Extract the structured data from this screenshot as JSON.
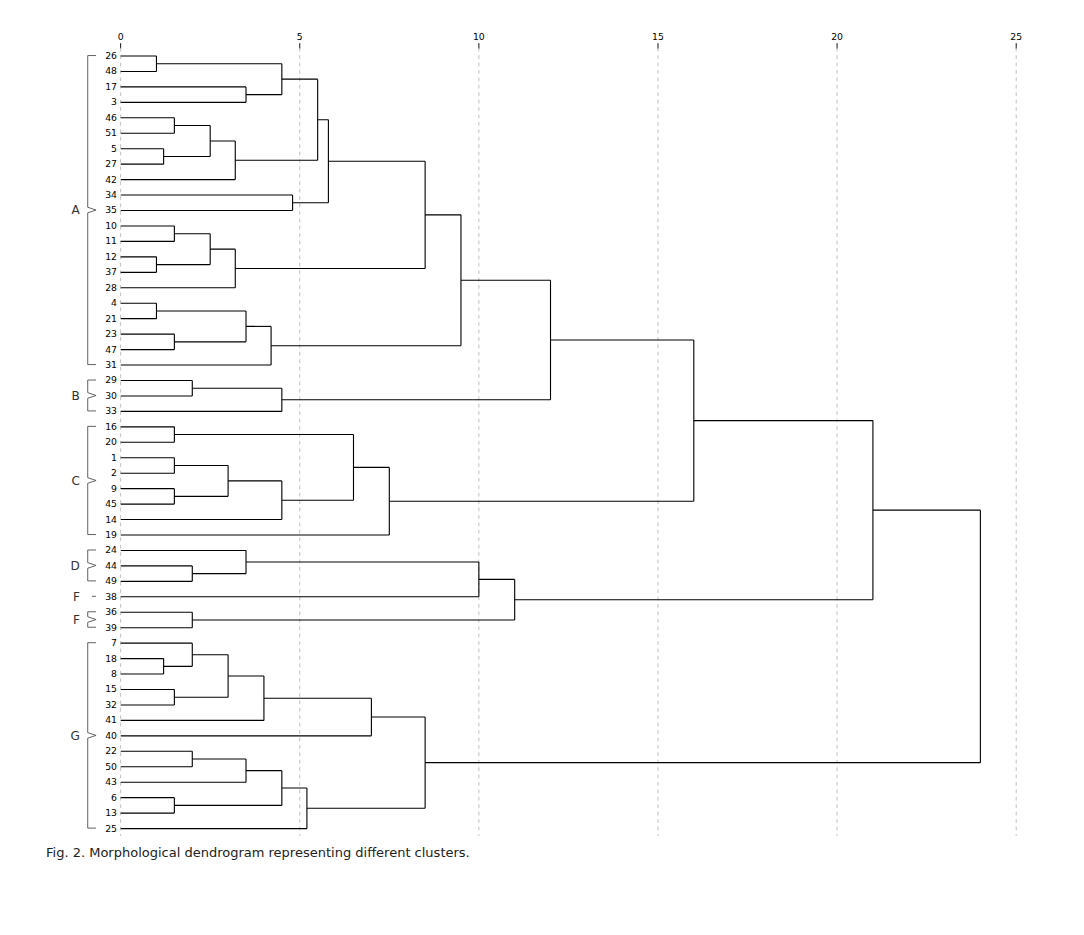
{
  "chart_data": {
    "type": "dendrogram",
    "caption": "Fig. 2. Morphological dendrogram representing different clusters.",
    "categories": [
      26,
      48,
      17,
      3,
      46,
      51,
      5,
      27,
      42,
      34,
      35,
      10,
      11,
      12,
      37,
      28,
      4,
      21,
      23,
      47,
      31,
      29,
      30,
      33,
      16,
      20,
      1,
      2,
      9,
      45,
      14,
      19,
      24,
      44,
      49,
      38,
      36,
      39,
      7,
      18,
      8,
      15,
      32,
      41,
      40,
      22,
      50,
      43,
      6,
      13,
      25
    ],
    "xlim": [
      0,
      25
    ],
    "xticks": [
      0,
      5,
      10,
      15,
      20,
      25
    ],
    "grid": true,
    "tree": {
      "height": 24.0,
      "children": [
        {
          "height": 21.0,
          "children": [
            {
              "height": 16.0,
              "children": [
                {
                  "height": 12.0,
                  "children": [
                    {
                      "height": 9.5,
                      "children": [
                        {
                          "height": 8.5,
                          "children": [
                            {
                              "height": 5.8,
                              "children": [
                                {
                                  "height": 5.5,
                                  "children": [
                                    {
                                      "height": 4.5,
                                      "children": [
                                        {
                                          "height": 1.0,
                                          "children": [
                                            26,
                                            48
                                          ]
                                        },
                                        {
                                          "height": 3.5,
                                          "children": [
                                            17,
                                            3
                                          ]
                                        }
                                      ]
                                    },
                                    {
                                      "height": 3.2,
                                      "children": [
                                        {
                                          "height": 2.5,
                                          "children": [
                                            {
                                              "height": 1.5,
                                              "children": [
                                                46,
                                                51
                                              ]
                                            },
                                            {
                                              "height": 1.2,
                                              "children": [
                                                5,
                                                27
                                              ]
                                            }
                                          ]
                                        },
                                        42
                                      ]
                                    }
                                  ]
                                },
                                {
                                  "height": 4.8,
                                  "children": [
                                    34,
                                    35
                                  ]
                                }
                              ]
                            },
                            {
                              "height": 3.2,
                              "children": [
                                {
                                  "height": 2.5,
                                  "children": [
                                    {
                                      "height": 1.5,
                                      "children": [
                                        10,
                                        11
                                      ]
                                    },
                                    {
                                      "height": 1.0,
                                      "children": [
                                        12,
                                        37
                                      ]
                                    }
                                  ]
                                },
                                28
                              ]
                            }
                          ]
                        },
                        {
                          "height": 4.2,
                          "children": [
                            {
                              "height": 3.5,
                              "children": [
                                {
                                  "height": 1.0,
                                  "children": [
                                    4,
                                    21
                                  ]
                                },
                                {
                                  "height": 1.5,
                                  "children": [
                                    23,
                                    47
                                  ]
                                }
                              ]
                            },
                            31
                          ]
                        }
                      ]
                    },
                    {
                      "height": 4.5,
                      "children": [
                        {
                          "height": 2.0,
                          "children": [
                            29,
                            30
                          ]
                        },
                        33
                      ]
                    }
                  ]
                },
                {
                  "height": 7.5,
                  "children": [
                    {
                      "height": 6.5,
                      "children": [
                        {
                          "height": 1.5,
                          "children": [
                            16,
                            20
                          ]
                        },
                        {
                          "height": 4.5,
                          "children": [
                            {
                              "height": 3.0,
                              "children": [
                                {
                                  "height": 1.5,
                                  "children": [
                                    1,
                                    2
                                  ]
                                },
                                {
                                  "height": 1.5,
                                  "children": [
                                    9,
                                    45
                                  ]
                                }
                              ]
                            },
                            14
                          ]
                        }
                      ]
                    },
                    19
                  ]
                }
              ]
            },
            {
              "height": 11.0,
              "children": [
                {
                  "height": 10.0,
                  "children": [
                    {
                      "height": 3.5,
                      "children": [
                        24,
                        {
                          "height": 2.0,
                          "children": [
                            44,
                            49
                          ]
                        }
                      ]
                    },
                    38
                  ]
                },
                {
                  "height": 2.0,
                  "children": [
                    36,
                    39
                  ]
                }
              ]
            }
          ]
        },
        {
          "height": 8.5,
          "children": [
            {
              "height": 7.0,
              "children": [
                {
                  "height": 4.0,
                  "children": [
                    {
                      "height": 3.0,
                      "children": [
                        {
                          "height": 2.0,
                          "children": [
                            7,
                            {
                              "height": 1.2,
                              "children": [
                                18,
                                8
                              ]
                            }
                          ]
                        },
                        {
                          "height": 1.5,
                          "children": [
                            15,
                            32
                          ]
                        }
                      ]
                    },
                    41
                  ]
                },
                40
              ]
            },
            {
              "height": 5.2,
              "children": [
                {
                  "height": 4.5,
                  "children": [
                    {
                      "height": 3.5,
                      "children": [
                        {
                          "height": 2.0,
                          "children": [
                            22,
                            50
                          ]
                        },
                        43
                      ]
                    },
                    {
                      "height": 1.5,
                      "children": [
                        6,
                        13
                      ]
                    }
                  ]
                },
                25
              ]
            }
          ]
        }
      ]
    },
    "clusters": [
      {
        "label": "A",
        "first": 26,
        "last": 31
      },
      {
        "label": "B",
        "first": 29,
        "last": 33
      },
      {
        "label": "C",
        "first": 16,
        "last": 19
      },
      {
        "label": "D",
        "first": 24,
        "last": 49
      },
      {
        "label": "F",
        "first": 38,
        "last": 38
      },
      {
        "label": "F",
        "first": 36,
        "last": 39
      },
      {
        "label": "G",
        "first": 7,
        "last": 25
      }
    ]
  }
}
